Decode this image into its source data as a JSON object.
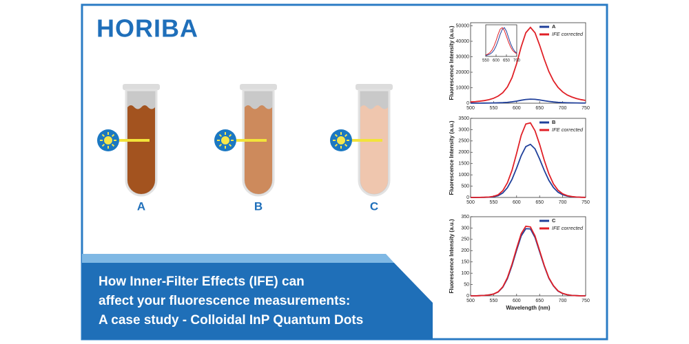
{
  "logo": "HORIBA",
  "tubes": [
    "A",
    "B",
    "C"
  ],
  "headline": [
    "How Inner-Filter Effects (IFE) can",
    "affect your fluorescence measurements:",
    "A case study - Colloidal InP Quantum Dots"
  ],
  "chart_data": [
    {
      "type": "line",
      "y_label": "Fluorescence Intensity (a.u.)",
      "legend": "upper right",
      "x": [
        500,
        510,
        520,
        530,
        540,
        550,
        560,
        570,
        580,
        590,
        600,
        610,
        620,
        630,
        640,
        650,
        660,
        670,
        680,
        690,
        700,
        710,
        720,
        730,
        740,
        750
      ],
      "xlim": [
        500,
        750
      ],
      "xticks": [
        500,
        550,
        600,
        650,
        700,
        750
      ],
      "ylim": [
        0,
        52000
      ],
      "yticks": [
        0,
        10000,
        20000,
        30000,
        40000,
        50000
      ],
      "series": [
        {
          "name": "A",
          "color": "#1f3f9a",
          "values": [
            40,
            50,
            70,
            90,
            120,
            170,
            240,
            360,
            550,
            870,
            1340,
            1920,
            2400,
            2600,
            2500,
            2100,
            1600,
            1150,
            800,
            560,
            400,
            290,
            220,
            160,
            120,
            100
          ]
        },
        {
          "name": "IFE corrected",
          "color": "#e01f26",
          "values": [
            800,
            1000,
            1300,
            1700,
            2300,
            3200,
            4600,
            6800,
            10500,
            16500,
            25500,
            36500,
            45500,
            49000,
            45500,
            37500,
            28500,
            20500,
            14500,
            10200,
            7300,
            5300,
            4000,
            3000,
            2300,
            1800
          ]
        }
      ]
    },
    {
      "type": "line",
      "x": [
        550,
        560,
        570,
        580,
        590,
        600,
        610,
        620,
        630,
        640,
        650,
        660,
        670,
        680,
        690,
        700
      ],
      "xlim": [
        550,
        700
      ],
      "xticks": [
        550,
        600,
        650,
        700
      ],
      "ylim": [
        0,
        1.1
      ],
      "series": [
        {
          "color": "#1f3f9a",
          "values": [
            0.03,
            0.05,
            0.08,
            0.13,
            0.22,
            0.36,
            0.55,
            0.77,
            0.94,
            1.0,
            0.88,
            0.66,
            0.45,
            0.29,
            0.18,
            0.11
          ]
        },
        {
          "color": "#e01f26",
          "values": [
            0.05,
            0.08,
            0.13,
            0.22,
            0.36,
            0.55,
            0.77,
            0.95,
            1.0,
            0.9,
            0.7,
            0.5,
            0.33,
            0.21,
            0.14,
            0.09
          ]
        }
      ]
    },
    {
      "type": "line",
      "y_label": "Fluorescence Intensity (a.u.)",
      "legend": "upper right",
      "x": [
        500,
        510,
        520,
        530,
        540,
        550,
        560,
        570,
        580,
        590,
        600,
        610,
        620,
        630,
        640,
        650,
        660,
        670,
        680,
        690,
        700,
        710,
        720,
        730,
        740,
        750
      ],
      "xlim": [
        500,
        750
      ],
      "xticks": [
        500,
        550,
        600,
        650,
        700,
        750
      ],
      "ylim": [
        0,
        3500
      ],
      "yticks": [
        0,
        500,
        1000,
        1500,
        2000,
        2500,
        3000,
        3500
      ],
      "series": [
        {
          "name": "B",
          "color": "#1f3f9a",
          "values": [
            0,
            0,
            3,
            6,
            12,
            30,
            80,
            200,
            430,
            800,
            1300,
            1850,
            2250,
            2350,
            2150,
            1700,
            1200,
            760,
            440,
            230,
            120,
            60,
            30,
            15,
            8,
            4
          ]
        },
        {
          "name": "IFE corrected",
          "color": "#e01f26",
          "values": [
            0,
            0,
            5,
            10,
            20,
            50,
            120,
            300,
            650,
            1200,
            1950,
            2750,
            3250,
            3300,
            2950,
            2350,
            1650,
            1050,
            600,
            320,
            160,
            80,
            40,
            20,
            10,
            5
          ]
        }
      ]
    },
    {
      "type": "line",
      "x_label": "Wavelength (nm)",
      "y_label": "Fluorescence Intensity (a.u.)",
      "legend": "upper right",
      "x": [
        500,
        510,
        520,
        530,
        540,
        550,
        560,
        570,
        580,
        590,
        600,
        610,
        620,
        630,
        640,
        650,
        660,
        670,
        680,
        690,
        700,
        710,
        720,
        730,
        740,
        750
      ],
      "xlim": [
        500,
        750
      ],
      "xticks": [
        500,
        550,
        600,
        650,
        700,
        750
      ],
      "ylim": [
        0,
        350
      ],
      "yticks": [
        0,
        50,
        100,
        150,
        200,
        250,
        300,
        350
      ],
      "series": [
        {
          "name": "C",
          "color": "#1f3f9a",
          "values": [
            0,
            0,
            1,
            2,
            4,
            8,
            17,
            38,
            76,
            134,
            202,
            265,
            297,
            296,
            258,
            195,
            132,
            78,
            44,
            21,
            10,
            5,
            2,
            1,
            0,
            0
          ]
        },
        {
          "name": "IFE corrected",
          "color": "#e01f26",
          "values": [
            0,
            0,
            1,
            2,
            4,
            8,
            18,
            40,
            80,
            140,
            210,
            275,
            308,
            305,
            265,
            200,
            135,
            80,
            45,
            22,
            11,
            5,
            2,
            1,
            0,
            0
          ]
        }
      ]
    }
  ]
}
